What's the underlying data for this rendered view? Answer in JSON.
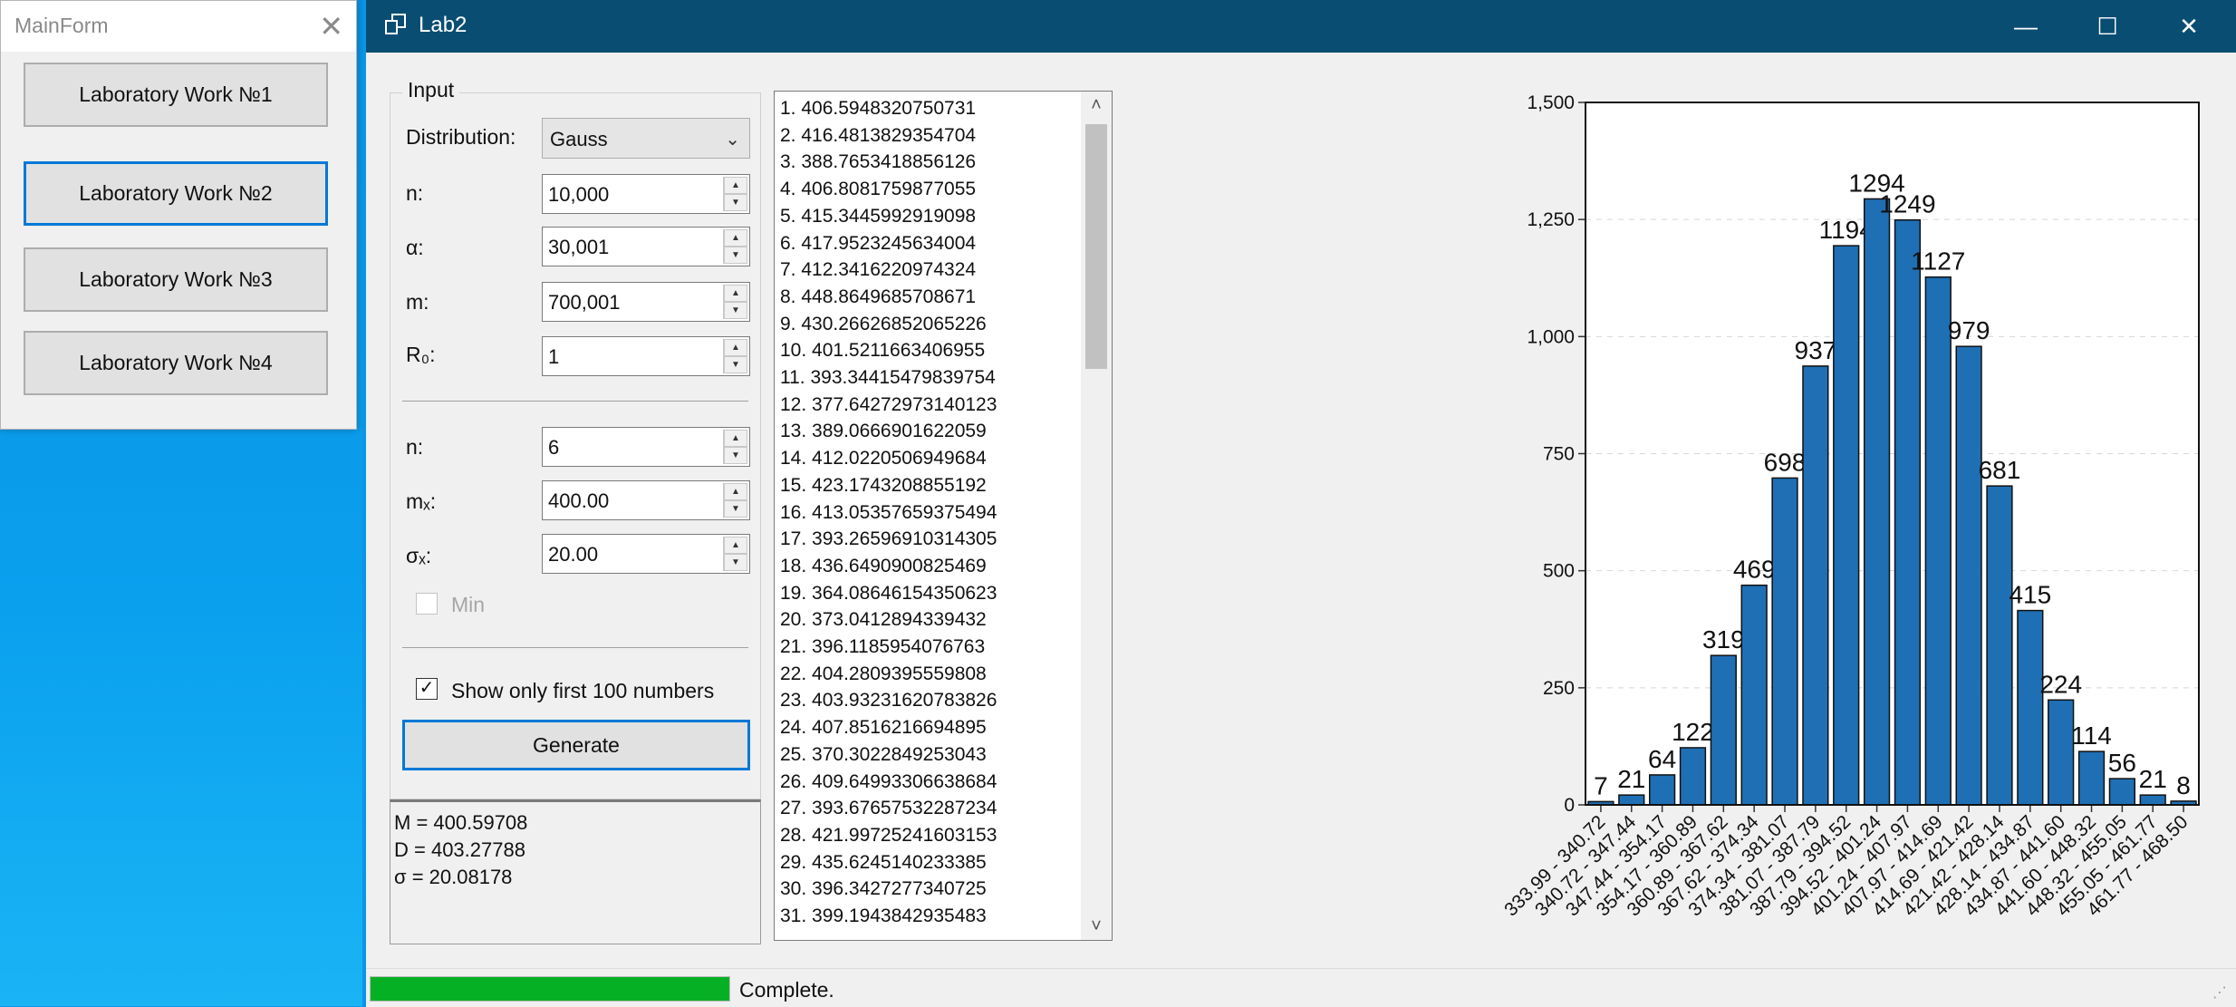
{
  "mainform": {
    "title": "MainForm",
    "buttons": [
      {
        "label": "Laboratory Work №1"
      },
      {
        "label": "Laboratory Work №2"
      },
      {
        "label": "Laboratory Work №3"
      },
      {
        "label": "Laboratory Work №4"
      }
    ]
  },
  "lab2": {
    "title": "Lab2",
    "input": {
      "group_title": "Input",
      "distribution_label": "Distribution:",
      "distribution_value": "Gauss",
      "n_label": "n:",
      "n_value": "10,000",
      "alpha_label": "α:",
      "alpha_value": "30,001",
      "m_label": "m:",
      "m_value": "700,001",
      "r0_label": "R₀:",
      "r0_value": "1",
      "n2_label": "n:",
      "n2_value": "6",
      "mx_label": "mₓ:",
      "mx_value": "400.00",
      "sigma_label": "σₓ:",
      "sigma_value": "20.00",
      "min_label": "Min",
      "min_checked": false,
      "show_only_label": "Show only first 100 numbers",
      "show_only_checked": "✓",
      "generate_label": "Generate"
    },
    "stats": {
      "M": "M = 400.59708",
      "D": "D = 403.27788",
      "sigma": "σ = 20.08178"
    },
    "numbers": [
      "1. 406.5948320750731",
      "2. 416.4813829354704",
      "3. 388.7653418856126",
      "4. 406.8081759877055",
      "5. 415.3445992919098",
      "6. 417.9523245634004",
      "7. 412.3416220974324",
      "8. 448.8649685708671",
      "9. 430.26626852065226",
      "10. 401.5211663406955",
      "11. 393.34415479839754",
      "12. 377.64272973140123",
      "13. 389.0666901622059",
      "14. 412.0220506949684",
      "15. 423.1743208855192",
      "16. 413.05357659375494",
      "17. 393.26596910314305",
      "18. 436.6490900825469",
      "19. 364.08646154350623",
      "20. 373.0412894339432",
      "21. 396.1185954076763",
      "22. 404.2809395559808",
      "23. 403.93231620783826",
      "24. 407.8516216694895",
      "25. 370.3022849253043",
      "26. 409.64993306638684",
      "27. 393.67657532287234",
      "28. 421.99725241603153",
      "29. 435.6245140233385",
      "30. 396.3427277340725",
      "31. 399.1943842935483"
    ],
    "status": {
      "text": "Complete.",
      "progress": 1.0
    }
  },
  "chart_data": {
    "type": "bar",
    "title": "",
    "xlabel": "",
    "ylabel": "",
    "ylim": [
      0,
      1500
    ],
    "yticks": [
      "0",
      "250",
      "500",
      "750",
      "1,000",
      "1,250",
      "1,500"
    ],
    "ytick_values": [
      0,
      250,
      500,
      750,
      1000,
      1250,
      1500
    ],
    "grid": true,
    "bar_color": "#1f6fb5",
    "categories": [
      "333.99 - 340.72",
      "340.72 - 347.44",
      "347.44 - 354.17",
      "354.17 - 360.89",
      "360.89 - 367.62",
      "367.62 - 374.34",
      "374.34 - 381.07",
      "381.07 - 387.79",
      "387.79 - 394.52",
      "394.52 - 401.24",
      "401.24 - 407.97",
      "407.97 - 414.69",
      "414.69 - 421.42",
      "421.42 - 428.14",
      "428.14 - 434.87",
      "434.87 - 441.60",
      "441.60 - 448.32",
      "448.32 - 455.05",
      "455.05 - 461.77",
      "461.77 - 468.50"
    ],
    "values": [
      7,
      21,
      64,
      122,
      319,
      469,
      698,
      937,
      1194,
      1294,
      1249,
      1127,
      979,
      681,
      415,
      224,
      114,
      56,
      21,
      8
    ]
  }
}
